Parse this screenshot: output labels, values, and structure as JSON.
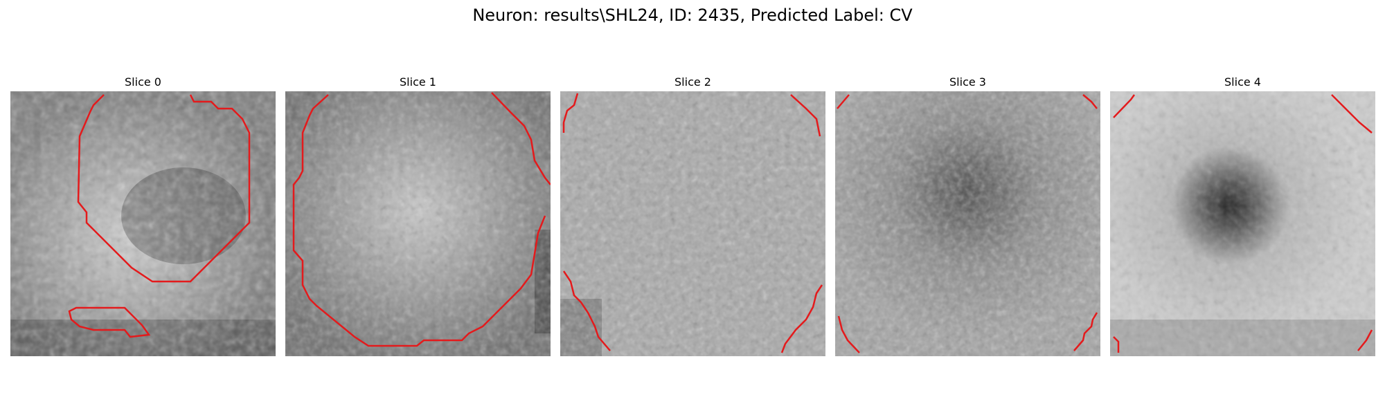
{
  "figure": {
    "title": "Neuron: results\\SHL24, ID: 2435, Predicted Label: CV"
  },
  "slices": [
    {
      "label": "Slice 0"
    },
    {
      "label": "Slice 1"
    },
    {
      "label": "Slice 2"
    },
    {
      "label": "Slice 3"
    },
    {
      "label": "Slice 4"
    }
  ],
  "colors": {
    "contour": "#e41a1c",
    "background": "#ffffff"
  }
}
